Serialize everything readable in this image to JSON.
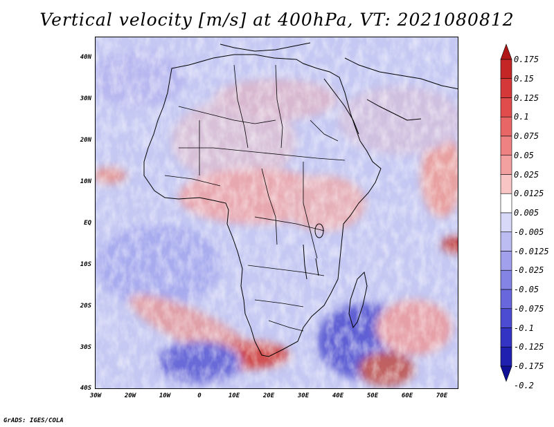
{
  "title": "Vertical velocity [m/s] at 400hPa, VT: 2021080812",
  "footer": "GrADS: IGES/COLA",
  "map": {
    "lat_labels": [
      "40N",
      "30N",
      "20N",
      "10N",
      "EQ",
      "10S",
      "20S",
      "30S",
      "40S"
    ],
    "lon_labels": [
      "30W",
      "20W",
      "10W",
      "0",
      "10E",
      "20E",
      "30E",
      "40E",
      "50E",
      "60E",
      "70E"
    ],
    "lat_range": [
      -40,
      45
    ],
    "lon_range": [
      -30,
      75
    ],
    "field": "vertical velocity",
    "level": "400hPa",
    "valid_time": "2021080812"
  },
  "colorbar": {
    "labels": [
      "0.175",
      "0.15",
      "0.125",
      "0.1",
      "0.075",
      "0.05",
      "0.025",
      "0.0125",
      "0.005",
      "-0.005",
      "-0.0125",
      "-0.025",
      "-0.05",
      "-0.075",
      "-0.1",
      "-0.125",
      "-0.175",
      "-0.2"
    ],
    "colors": [
      "#b01818",
      "#c42626",
      "#d43838",
      "#e04c4c",
      "#e86666",
      "#ee8282",
      "#f3a0a0",
      "#f8c4c4",
      "#ffffff",
      "#d8d8f8",
      "#bcbcf2",
      "#a0a0ec",
      "#8484e4",
      "#6868dc",
      "#4c4cd2",
      "#3434c4",
      "#2020b0",
      "#101096"
    ]
  }
}
